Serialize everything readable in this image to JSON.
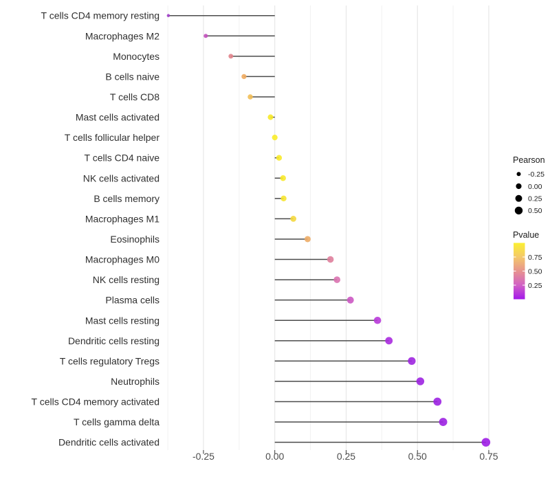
{
  "chart_data": {
    "type": "lollipop",
    "title": "",
    "xlabel": "",
    "ylabel": "",
    "xlim": [
      -0.43,
      0.8
    ],
    "x_tick_values": [
      -0.25,
      0.0,
      0.25,
      0.5,
      0.75
    ],
    "x_tick_labels": [
      "-0.25",
      "0.00",
      "0.25",
      "0.50",
      "0.75"
    ],
    "x_minor_gridlines": [
      -0.375,
      -0.125,
      0.125,
      0.375,
      0.625
    ],
    "grid": "vertical major+minor, no horizontal",
    "stem_color": "#4A4A4A",
    "points": [
      {
        "label": "T cells CD4 memory resting",
        "pearson": -0.373,
        "color": "#A03FC8"
      },
      {
        "label": "Macrophages M2",
        "pearson": -0.242,
        "color": "#C351BE"
      },
      {
        "label": "Monocytes",
        "pearson": -0.154,
        "color": "#E1838B"
      },
      {
        "label": "B cells naive",
        "pearson": -0.108,
        "color": "#EFAB5F"
      },
      {
        "label": "T cells CD8",
        "pearson": -0.086,
        "color": "#F2BE55"
      },
      {
        "label": "Mast cells activated",
        "pearson": -0.015,
        "color": "#F7E928"
      },
      {
        "label": "T cells follicular helper",
        "pearson": 0.0,
        "color": "#F9EC29"
      },
      {
        "label": "T cells CD4 naive",
        "pearson": 0.015,
        "color": "#F8EA2A"
      },
      {
        "label": "NK cells activated",
        "pearson": 0.029,
        "color": "#F8E92B"
      },
      {
        "label": "B cells memory",
        "pearson": 0.031,
        "color": "#F6E430"
      },
      {
        "label": "Macrophages M1",
        "pearson": 0.065,
        "color": "#F4D83E"
      },
      {
        "label": "Eosinophils",
        "pearson": 0.115,
        "color": "#EDAC66"
      },
      {
        "label": "Macrophages M0",
        "pearson": 0.195,
        "color": "#DF7F9C"
      },
      {
        "label": "NK cells resting",
        "pearson": 0.218,
        "color": "#DA73B0"
      },
      {
        "label": "Plasma cells",
        "pearson": 0.265,
        "color": "#CC58C3"
      },
      {
        "label": "Mast cells resting",
        "pearson": 0.36,
        "color": "#B83AD9"
      },
      {
        "label": "Dendritic cells resting",
        "pearson": 0.4,
        "color": "#AA2BDF"
      },
      {
        "label": "T cells regulatory  Tregs",
        "pearson": 0.48,
        "color": "#9E26E0"
      },
      {
        "label": "Neutrophils",
        "pearson": 0.51,
        "color": "#9D24E1"
      },
      {
        "label": "T cells CD4 memory activated",
        "pearson": 0.57,
        "color": "#9C22E2"
      },
      {
        "label": "T cells gamma delta",
        "pearson": 0.59,
        "color": "#9C21E2"
      },
      {
        "label": "Dendritic cells activated",
        "pearson": 0.74,
        "color": "#9D1DE6"
      }
    ],
    "legend": {
      "size": {
        "title": "Pearson",
        "entry_labels": [
          "-0.25",
          "0.00",
          "0.25",
          "0.50"
        ],
        "entry_values": [
          -0.25,
          0.0,
          0.25,
          0.5
        ],
        "dot_color": "#000000"
      },
      "color": {
        "title": "Pvalue",
        "tick_labels": [
          "0.75",
          "0.50",
          "0.25"
        ],
        "tick_values": [
          0.75,
          0.5,
          0.25
        ],
        "bar_range_top_to_bottom": [
          1.0,
          0.0
        ],
        "gradient_top_to_bottom": [
          "#FBF032",
          "#F4C86A",
          "#E7938F",
          "#D161C5",
          "#A318EA"
        ]
      }
    }
  }
}
